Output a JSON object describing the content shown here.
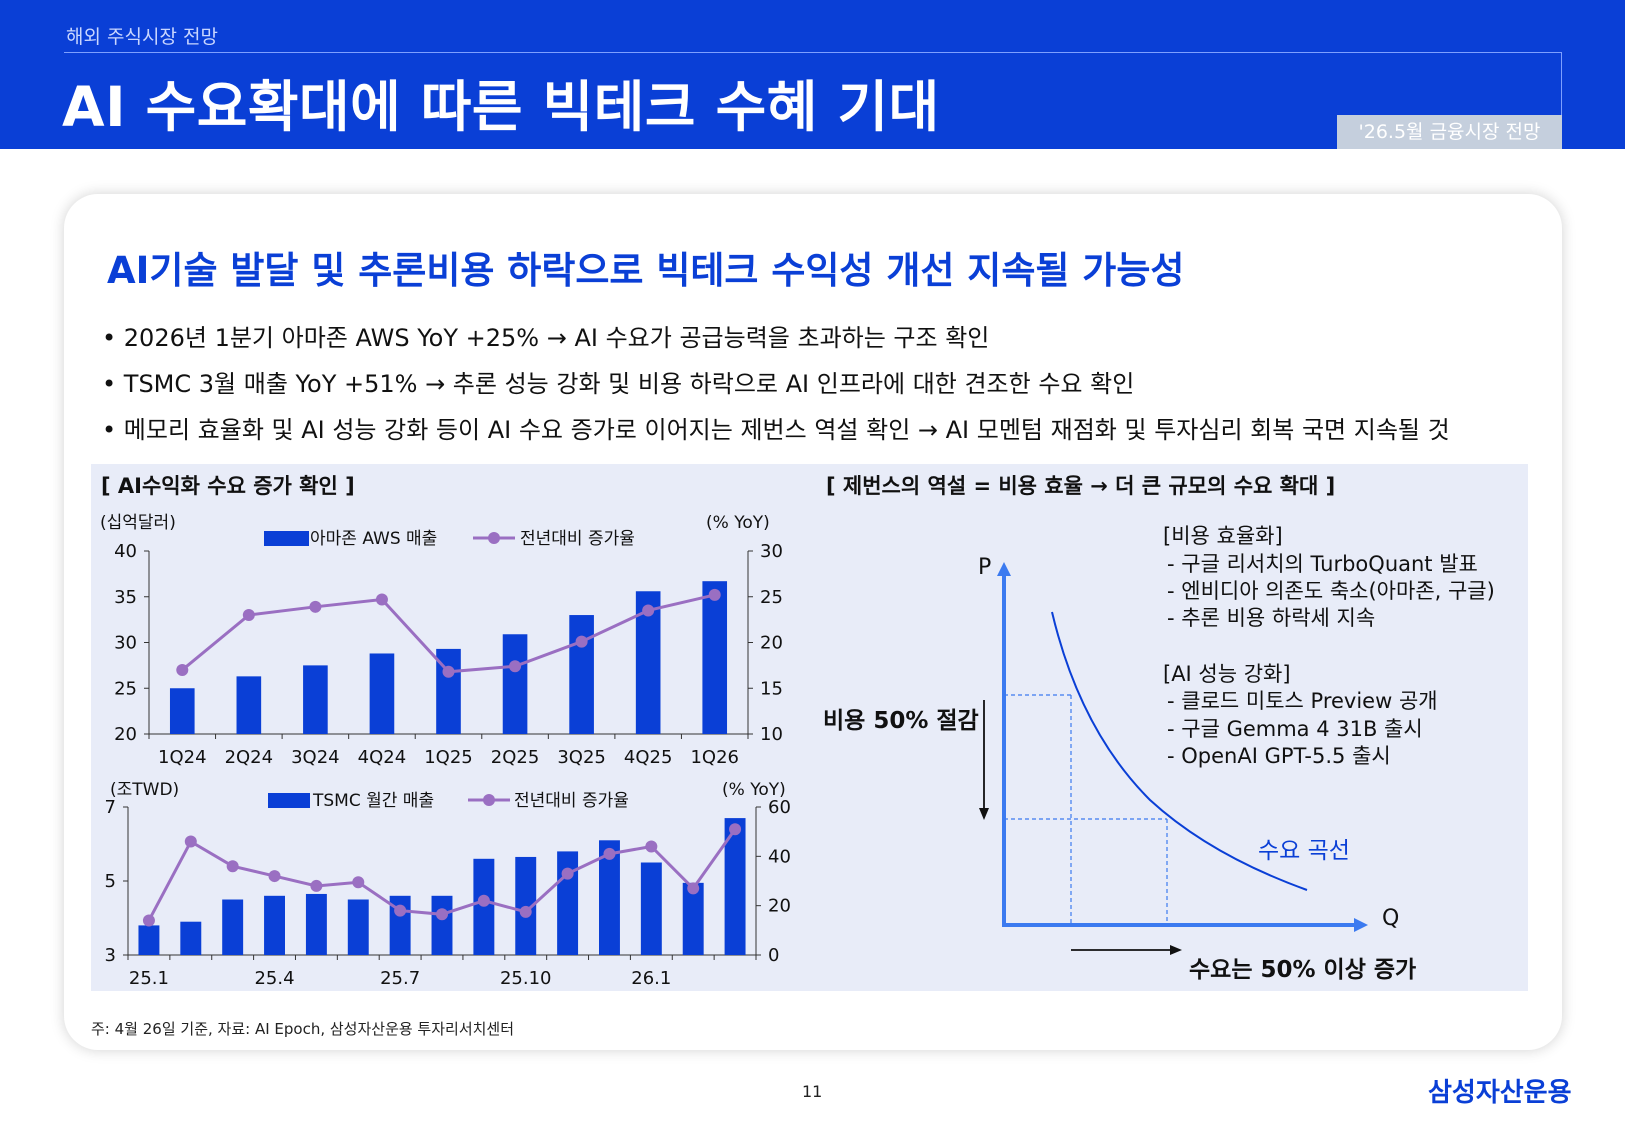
{
  "header": {
    "breadcrumb": "해외 주식시장 전망",
    "title": "AI 수요확대에 따른 빅테크 수혜 기대",
    "badge": "'26.5월 금융시장 전망"
  },
  "content": {
    "subtitle": "AI기술 발달 및 추론비용 하락으로 빅테크 수익성 개선 지속될 가능성",
    "bullets": [
      "• 2026년 1분기 아마존 AWS YoY +25% → AI 수요가 공급능력을 초과하는 구조 확인",
      "• TSMC 3월 매출 YoY +51% → 추론 성능 강화 및 비용 하락으로 AI 인프라에 대한 견조한 수요 확인",
      "• 메모리 효율화 및 AI 성능 강화 등이 AI 수요 증가로 이어지는 제번스 역설 확인 → AI 모멘텀 재점화 및 투자심리 회복 국면 지속될 것"
    ]
  },
  "colors": {
    "bar": "#0a3fd6",
    "line": "#9a6fc2",
    "curve": "#0a3fd6",
    "axis": "#3b7af0"
  },
  "chart_data": [
    {
      "type": "bar",
      "title": "[ AI수익화 수요 증가 확인 ]",
      "ylabel": "(십억달러)",
      "y2label": "(% YoY)",
      "categories": [
        "1Q24",
        "2Q24",
        "3Q24",
        "4Q24",
        "1Q25",
        "2Q25",
        "3Q25",
        "4Q25",
        "1Q26"
      ],
      "ylim": [
        20,
        40
      ],
      "y2lim": [
        10,
        30
      ],
      "yticks": [
        20,
        25,
        30,
        35,
        40
      ],
      "y2ticks": [
        10,
        15,
        20,
        25,
        30
      ],
      "series": [
        {
          "name": "아마존 AWS 매출",
          "type": "bar",
          "values": [
            25.0,
            26.3,
            27.5,
            28.8,
            29.3,
            30.9,
            33.0,
            35.6,
            36.7
          ]
        },
        {
          "name": "전년대비 증가율",
          "type": "line",
          "axis": "right",
          "values": [
            17.0,
            23.0,
            23.9,
            24.7,
            16.8,
            17.4,
            20.1,
            23.5,
            25.2
          ]
        }
      ],
      "legend": "top"
    },
    {
      "type": "bar",
      "ylabel": "(조TWD)",
      "y2label": "(% YoY)",
      "x_tick_labels": [
        {
          "index": 0,
          "label": "25.1"
        },
        {
          "index": 3,
          "label": "25.4"
        },
        {
          "index": 6,
          "label": "25.7"
        },
        {
          "index": 9,
          "label": "25.10"
        },
        {
          "index": 12,
          "label": "26.1"
        }
      ],
      "ylim": [
        3,
        7
      ],
      "y2lim": [
        0,
        60
      ],
      "yticks": [
        3,
        5,
        7
      ],
      "y2ticks": [
        0,
        20,
        40,
        60
      ],
      "series": [
        {
          "name": "TSMC 월간 매출",
          "type": "bar",
          "values": [
            3.8,
            3.9,
            4.5,
            4.6,
            4.65,
            4.5,
            4.6,
            4.6,
            5.6,
            5.65,
            5.8,
            6.1,
            5.5,
            4.95,
            6.7
          ]
        },
        {
          "name": "전년대비 증가율",
          "type": "line",
          "axis": "right",
          "values": [
            14,
            46,
            36,
            32,
            28,
            29.5,
            18,
            16.5,
            22,
            17.5,
            33,
            41,
            44,
            27,
            51
          ]
        }
      ],
      "legend": "top"
    },
    {
      "type": "diagram",
      "title": "[ 제번스의 역설 = 비용 효율 → 더 큰 규모의 수요 확대 ]",
      "p_label": "P",
      "q_label": "Q",
      "cost_label": "비용 50% 절감",
      "demand_label": "수요는 50% 이상 증가",
      "curve_label": "수요 곡선",
      "box1_title": "[비용 효율화]",
      "box1_items": [
        "- 구글 리서치의 TurboQuant 발표",
        "- 엔비디아 의존도 축소(아마존, 구글)",
        "- 추론 비용 하락세 지속"
      ],
      "box2_title": "[AI 성능 강화]",
      "box2_items": [
        "- 클로드 미토스 Preview 공개",
        "- 구글 Gemma 4 31B 출시",
        "- OpenAI GPT-5.5 출시"
      ]
    }
  ],
  "footer": {
    "note": "주: 4월 26일 기준, 자료: AI Epoch, 삼성자산운용 투자리서치센터",
    "page": "11",
    "logo": "삼성자산운용"
  }
}
